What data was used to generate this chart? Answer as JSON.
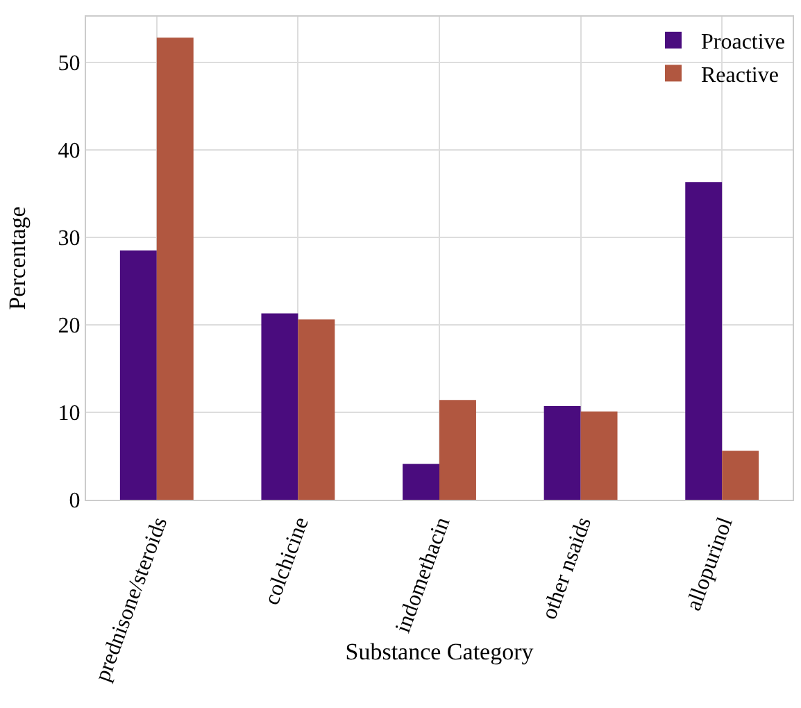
{
  "chart_data": {
    "type": "bar",
    "xlabel": "Substance Category",
    "ylabel": "Percentage",
    "categories": [
      "prednisone/steroids",
      "colchicine",
      "indomethacin",
      "other nsaids",
      "allopurinol"
    ],
    "series": [
      {
        "name": "Proactive",
        "color": "#4a0c7e",
        "values": [
          28.5,
          21.3,
          4.1,
          10.7,
          36.3
        ]
      },
      {
        "name": "Reactive",
        "color": "#b15740",
        "values": [
          52.8,
          20.6,
          11.4,
          10.1,
          5.6
        ]
      }
    ],
    "ylim": [
      0,
      55.2
    ],
    "yticks": [
      0,
      10,
      20,
      30,
      40,
      50
    ],
    "grid": true,
    "legend": "top right"
  }
}
